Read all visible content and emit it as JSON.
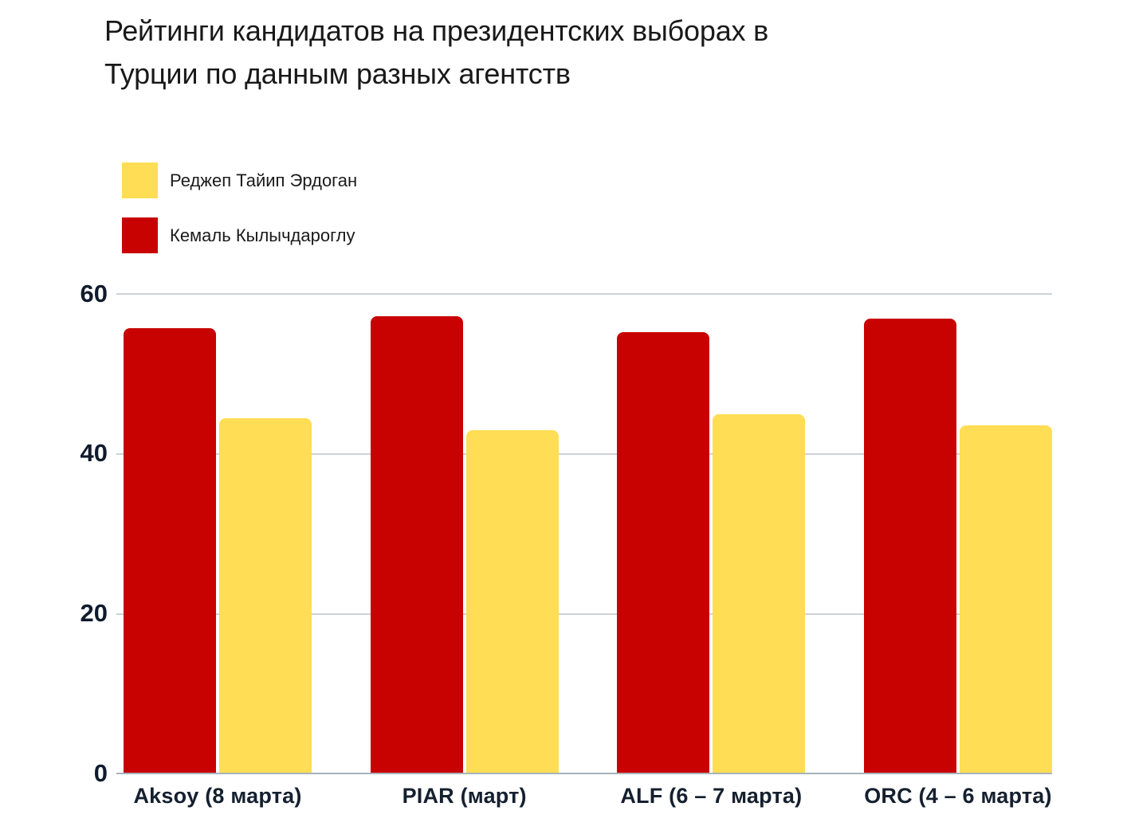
{
  "title": {
    "line1": "Рейтинги кандидатов на президентских выборах в",
    "line2": "Турции по данным разных агентств"
  },
  "legend": {
    "items": [
      {
        "label": "Реджеп Тайип Эрдоган",
        "color": "#FFDD55"
      },
      {
        "label": "Кемаль Кылычдароглу",
        "color": "#C80101"
      }
    ]
  },
  "y_axis": {
    "ticks": [
      "60",
      "40",
      "20",
      "0"
    ]
  },
  "chart_data": {
    "type": "bar",
    "title": "Рейтинги кандидатов на президентских выборах в Турции по данным разных агентств",
    "categories": [
      "Aksoy (8 марта)",
      "PIAR (март)",
      "ALF (6 – 7 марта)",
      "ORC (4 – 6 марта)"
    ],
    "series": [
      {
        "name": "Кемаль Кылычдароглу",
        "key": "kilicdaroglu",
        "color": "#C80101",
        "values": [
          55.6,
          57.1,
          55.1,
          56.8
        ]
      },
      {
        "name": "Реджеп Тайип Эрдоган",
        "key": "erdogan",
        "color": "#FFDD55",
        "values": [
          44.4,
          42.9,
          44.9,
          43.5
        ]
      }
    ],
    "xlabel": "",
    "ylabel": "",
    "ylim": [
      0,
      60
    ],
    "yticks": [
      0,
      20,
      40,
      60
    ],
    "grid": true,
    "legend_position": "top-left",
    "colors": {
      "background": "#ffffff",
      "gridline": "#ccd3d7",
      "axis_line": "#a9b3ba",
      "tick_text": "#101b2c",
      "title_text": "#191919"
    }
  }
}
